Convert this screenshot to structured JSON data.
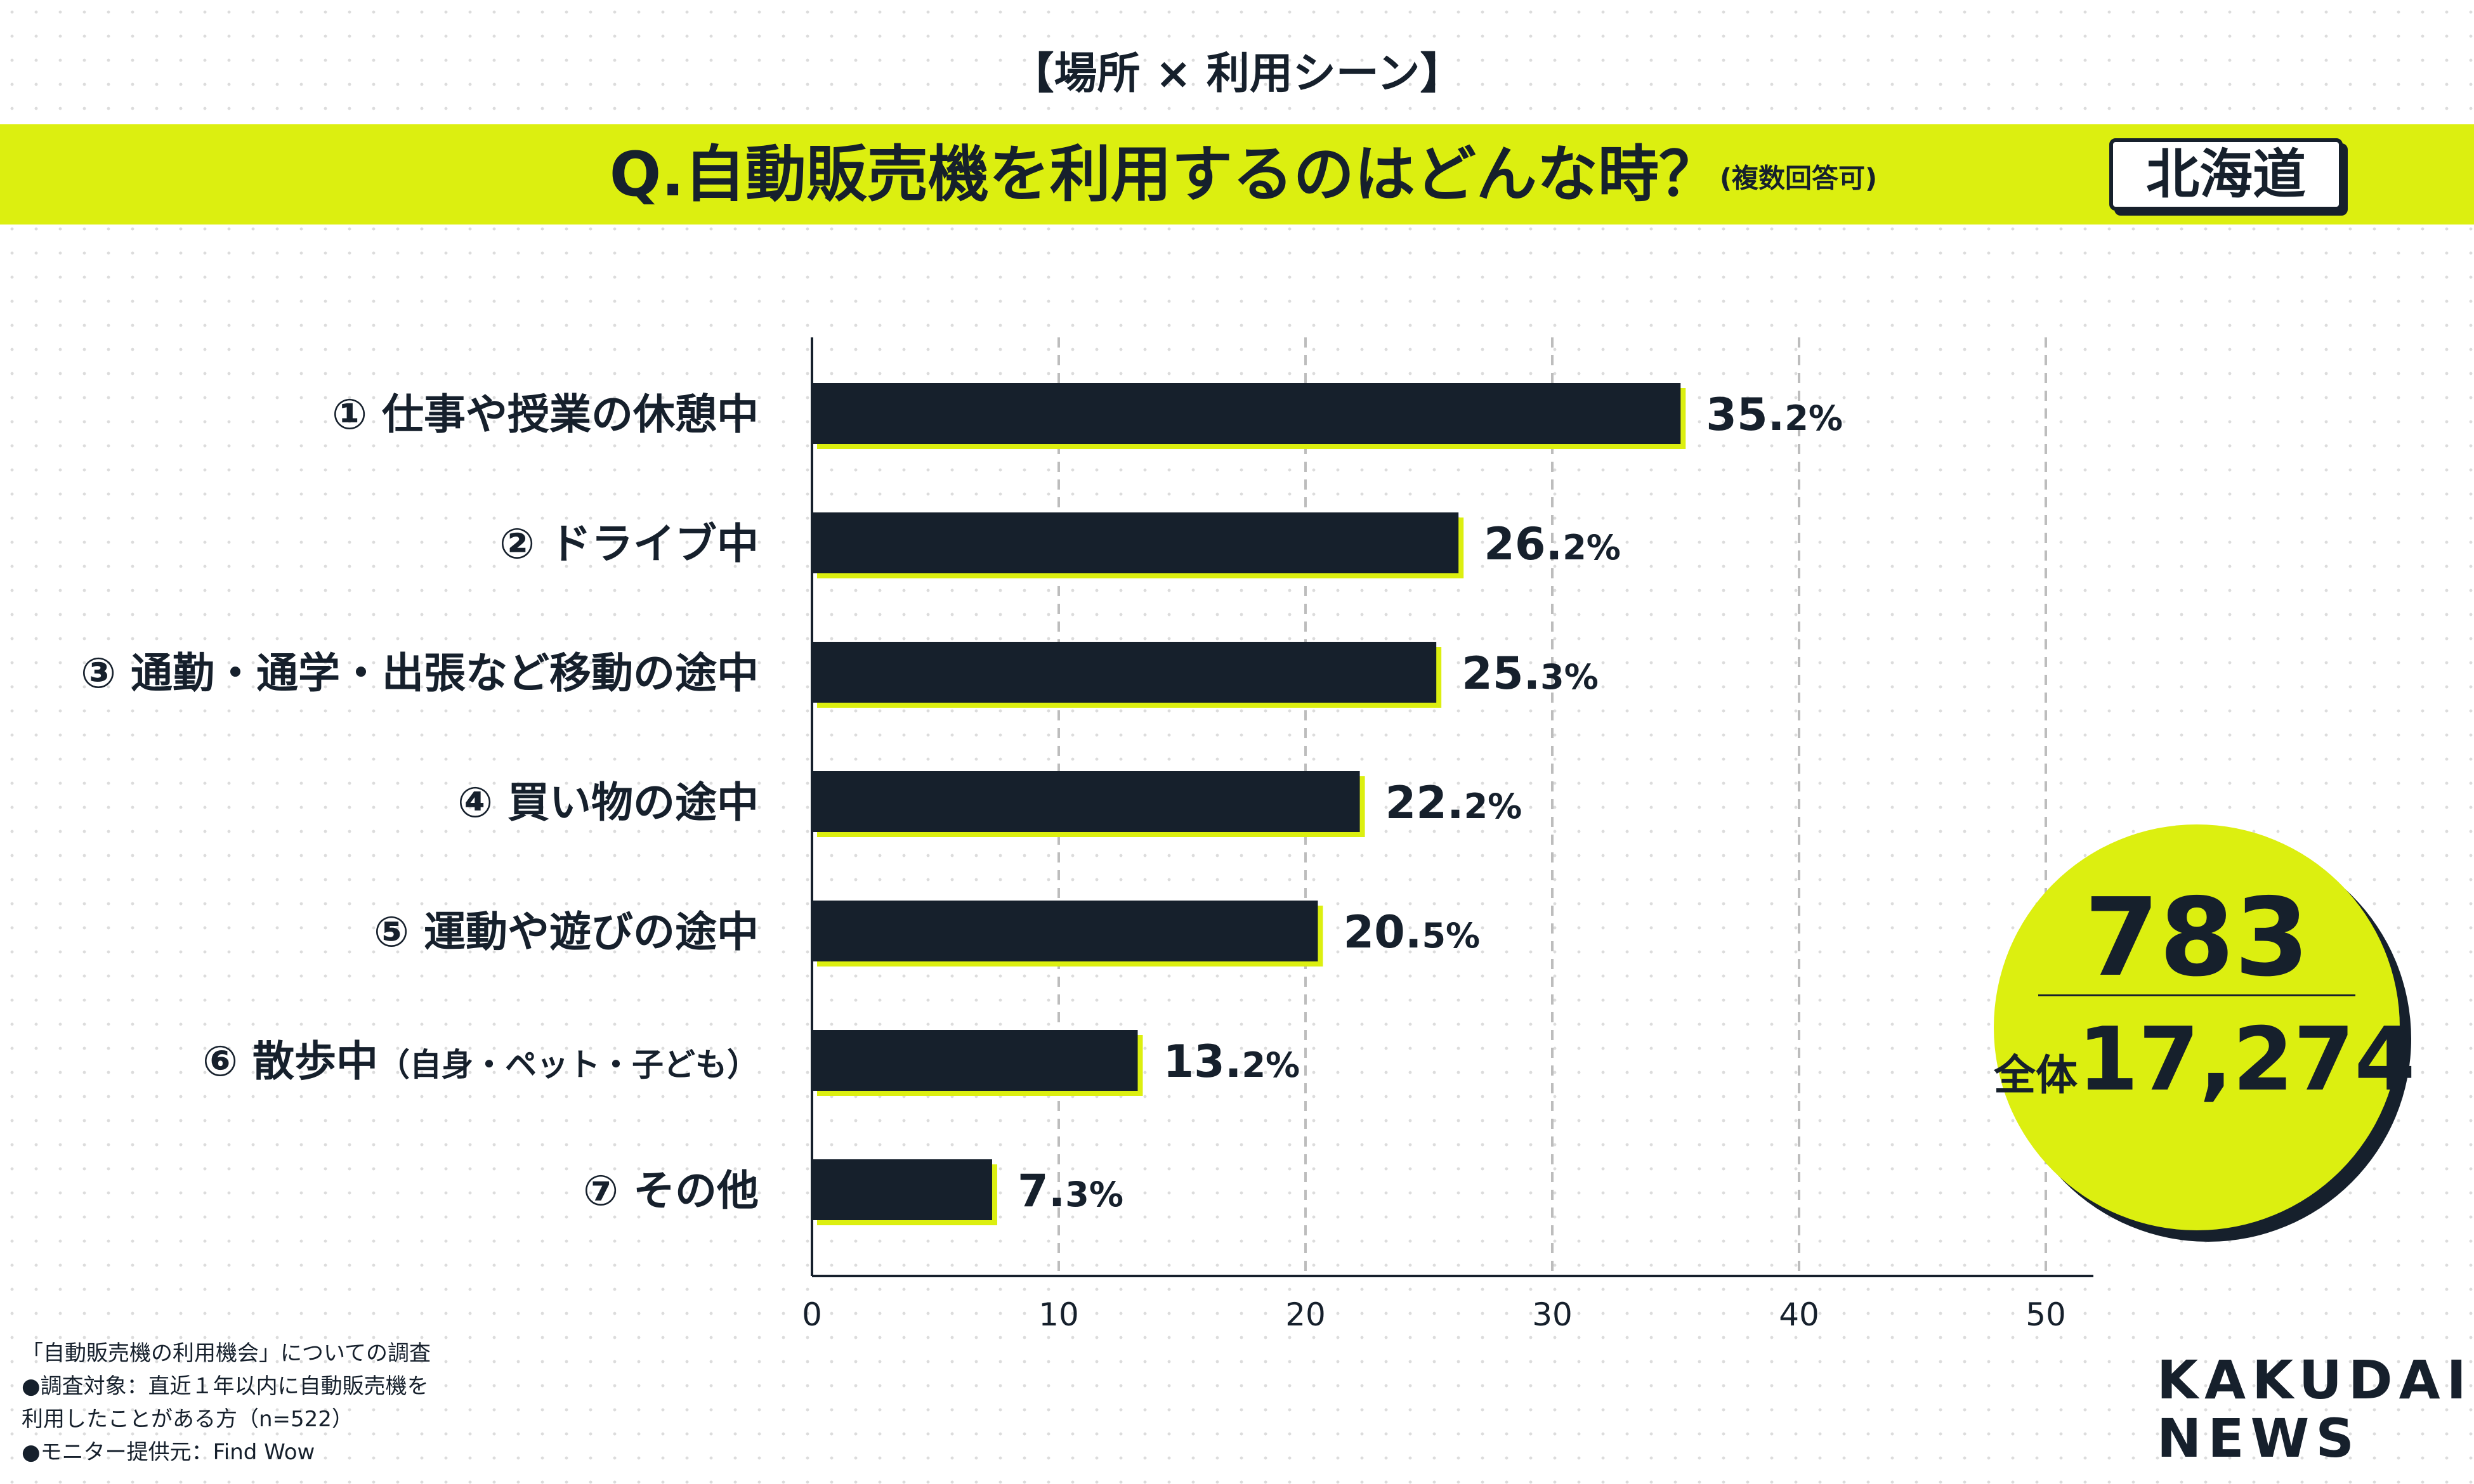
{
  "header": {
    "subtitle": "【場所 × 利用シーン】",
    "question": "Q.自動販売機を利用するのはどんな時？",
    "question_note": "(複数回答可)",
    "region": "北海道"
  },
  "colors": {
    "accent": "#dcef10",
    "bar": "#16202c",
    "text": "#16202c"
  },
  "chart_data": {
    "type": "bar",
    "orientation": "horizontal",
    "categories": [
      "① 仕事や授業の休憩中",
      "② ドライブ中",
      "③ 通勤・通学・出張など移動の途中",
      "④ 買い物の途中",
      "⑤ 運動や遊びの途中",
      "⑥ 散歩中",
      "⑦ その他"
    ],
    "category_notes": [
      "",
      "",
      "",
      "",
      "",
      "（自身・ペット・子ども）",
      ""
    ],
    "values": [
      35.2,
      26.2,
      25.3,
      22.2,
      20.5,
      13.2,
      7.3
    ],
    "value_suffix": "%",
    "xlim": [
      0,
      50
    ],
    "ticks": [
      0,
      10,
      20,
      30,
      40,
      50
    ],
    "grid": true,
    "legend": "none"
  },
  "badge": {
    "count": "783",
    "total_label": "全体",
    "total_value": "17,274"
  },
  "footnotes": [
    "「自動販売機の利用機会」についての調査",
    "●調査対象：直近１年以内に自動販売機を",
    "利用したことがある方（n=522）",
    "●モニター提供元：Find Wow"
  ],
  "logo": {
    "line1": "KAKUDAI",
    "line2": "NEWS"
  }
}
